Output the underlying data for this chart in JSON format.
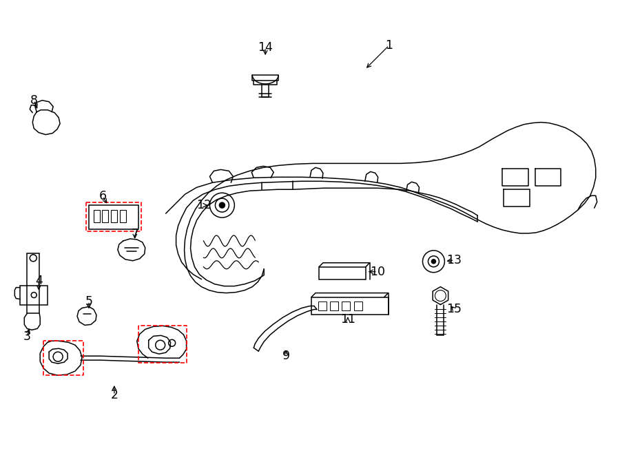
{
  "background_color": "#ffffff",
  "line_color": "#000000",
  "red_color": "#ff0000",
  "lw": 1.1,
  "figsize": [
    9.0,
    6.61
  ],
  "dpi": 100,
  "label_fontsize": 12.5
}
